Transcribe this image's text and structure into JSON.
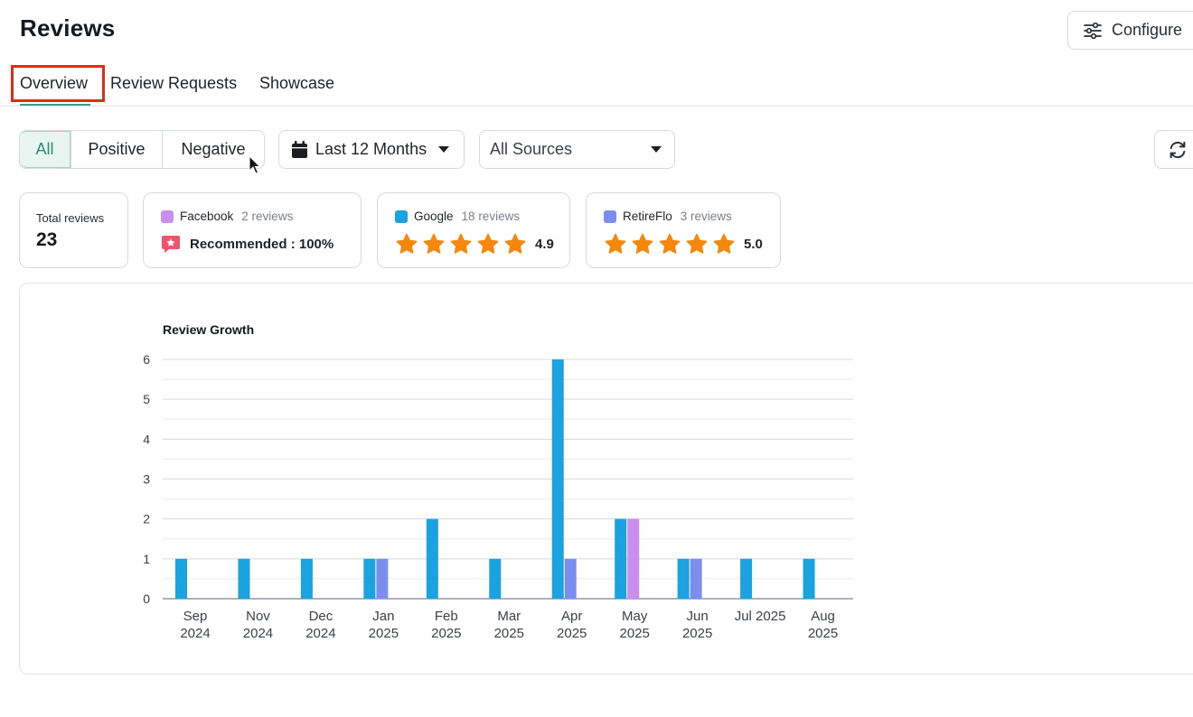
{
  "page": {
    "title": "Reviews",
    "configure_label": "Configure"
  },
  "tabs": [
    {
      "label": "Overview",
      "active": true
    },
    {
      "label": "Review Requests",
      "active": false
    },
    {
      "label": "Showcase",
      "active": false
    }
  ],
  "filters": {
    "sentiment": {
      "options": [
        "All",
        "Positive",
        "Negative"
      ],
      "selected": "All"
    },
    "date_range": "Last 12 Months",
    "source": "All Sources"
  },
  "summary": {
    "total_label": "Total reviews",
    "total_value": "23",
    "sources": [
      {
        "name": "Facebook",
        "count": "2 reviews",
        "color": "#c98ef0",
        "recommended": "Recommended : 100%"
      },
      {
        "name": "Google",
        "count": "18 reviews",
        "color": "#1aa3e0",
        "rating": "4.9"
      },
      {
        "name": "RetireFlo",
        "count": "3 reviews",
        "color": "#7b8ef0",
        "rating": "5.0"
      }
    ]
  },
  "colors": {
    "accent": "#3f9d83",
    "star": "#f5870a",
    "google": "#1aa3e0",
    "retireflo": "#7b8ef0",
    "facebook": "#c98ef0",
    "highlight": "#e32b1a"
  },
  "chart_data": {
    "type": "bar",
    "title": "Review Growth",
    "xlabel": "",
    "ylabel": "",
    "ylim": [
      0,
      6
    ],
    "yticks": [
      0,
      1,
      2,
      3,
      4,
      5,
      6
    ],
    "grid": true,
    "categories": [
      [
        "Sep",
        "2024"
      ],
      [
        "Nov",
        "2024"
      ],
      [
        "Dec",
        "2024"
      ],
      [
        "Jan",
        "2025"
      ],
      [
        "Feb",
        "2025"
      ],
      [
        "Mar",
        "2025"
      ],
      [
        "Apr",
        "2025"
      ],
      [
        "May",
        "2025"
      ],
      [
        "Jun",
        "2025"
      ],
      [
        "Jul 2025"
      ],
      [
        "Aug",
        "2025"
      ]
    ],
    "series": [
      {
        "name": "Google",
        "color": "#1aa3e0",
        "values": [
          1,
          1,
          1,
          1,
          2,
          1,
          6,
          2,
          1,
          1,
          1
        ]
      },
      {
        "name": "RetireFlo",
        "color": "#7b8ef0",
        "values": [
          0,
          0,
          0,
          1,
          0,
          0,
          1,
          0,
          1,
          0,
          0
        ]
      },
      {
        "name": "Facebook",
        "color": "#c98ef0",
        "values": [
          0,
          0,
          0,
          0,
          0,
          0,
          0,
          2,
          0,
          0,
          0
        ]
      }
    ]
  }
}
